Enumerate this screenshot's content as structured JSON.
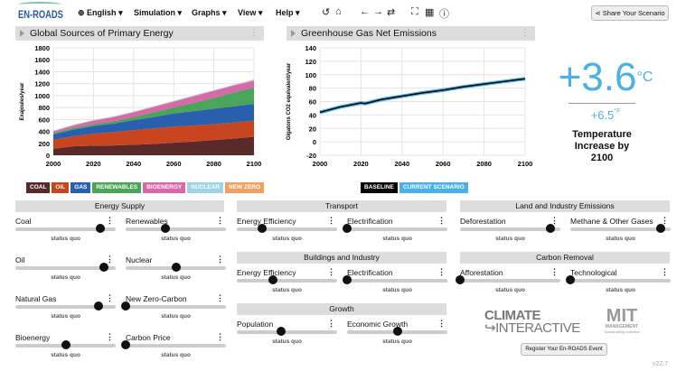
{
  "nav": {
    "logo": "EN-ROADS",
    "language": "English",
    "menus": [
      "Simulation",
      "Graphs",
      "View",
      "Help"
    ],
    "share": "Share Your Scenario"
  },
  "icons": [
    "undo-icon",
    "home-icon",
    "back-icon",
    "forward-icon",
    "redo-icon",
    "fullscreen-icon",
    "table-icon",
    "info-icon"
  ],
  "panels": {
    "left_title": "Global Sources of Primary Energy",
    "right_title": "Greenhouse Gas Net Emissions"
  },
  "chart_data": [
    {
      "type": "area",
      "stacked": true,
      "title": "Global Sources of Primary Energy",
      "ylabel": "Exajoules/year",
      "xlim": [
        2000,
        2100
      ],
      "ylim": [
        0,
        1800
      ],
      "yticks": [
        0,
        200,
        400,
        600,
        800,
        1000,
        1200,
        1400,
        1600,
        1800
      ],
      "xticks": [
        2000,
        2020,
        2040,
        2060,
        2080,
        2100
      ],
      "grid": true,
      "x": [
        2000,
        2010,
        2020,
        2030,
        2040,
        2050,
        2060,
        2070,
        2080,
        2090,
        2100
      ],
      "series": [
        {
          "name": "COAL",
          "color": "#5a2a2a",
          "values": [
            110,
            150,
            160,
            165,
            175,
            190,
            210,
            230,
            255,
            280,
            310
          ]
        },
        {
          "name": "OIL",
          "color": "#c8451f",
          "values": [
            150,
            170,
            200,
            225,
            245,
            260,
            270,
            270,
            265,
            270,
            270
          ]
        },
        {
          "name": "GAS",
          "color": "#2a5fae",
          "values": [
            90,
            110,
            130,
            140,
            170,
            190,
            220,
            240,
            260,
            270,
            280
          ]
        },
        {
          "name": "RENEWABLES",
          "color": "#4aa55a",
          "values": [
            20,
            30,
            30,
            40,
            50,
            80,
            100,
            140,
            180,
            230,
            280
          ]
        },
        {
          "name": "BIOENERGY",
          "color": "#d968a8",
          "values": [
            30,
            40,
            60,
            70,
            80,
            90,
            100,
            110,
            120,
            120,
            110
          ]
        },
        {
          "name": "NUCLEAR",
          "color": "#9fd4e4",
          "values": [
            10,
            10,
            10,
            10,
            10,
            10,
            10,
            10,
            10,
            10,
            15
          ]
        },
        {
          "name": "NEW ZERO",
          "color": "#f0a060",
          "values": [
            2,
            2,
            2,
            2,
            2,
            2,
            2,
            2,
            2,
            2,
            5
          ]
        }
      ]
    },
    {
      "type": "line",
      "title": "Greenhouse Gas Net Emissions",
      "ylabel": "Gigatons CO2 equivalent/year",
      "xlim": [
        2000,
        2100
      ],
      "ylim": [
        -20,
        140
      ],
      "yticks": [
        -20,
        0,
        20,
        40,
        60,
        80,
        100,
        120,
        140
      ],
      "xticks": [
        2000,
        2020,
        2040,
        2060,
        2080,
        2100
      ],
      "grid": true,
      "x": [
        2000,
        2010,
        2020,
        2022,
        2030,
        2040,
        2050,
        2060,
        2070,
        2080,
        2090,
        2100
      ],
      "series": [
        {
          "name": "BASELINE",
          "color": "#000000",
          "values": [
            44,
            52,
            58,
            57,
            63,
            68,
            73,
            77,
            82,
            86,
            90,
            94
          ]
        },
        {
          "name": "CURRENT SCENARIO",
          "color": "#4ab0e8",
          "values": [
            44,
            52,
            58,
            57,
            63,
            68,
            73,
            77,
            82,
            86,
            90,
            94
          ]
        }
      ]
    }
  ],
  "temperature": {
    "celsius": "+3.6",
    "c_unit": "°C",
    "fahrenheit": "+6.5",
    "f_unit": "°F",
    "caption": "Temperature Increase by 2100"
  },
  "groups": [
    {
      "title": "Energy Supply",
      "sliders": [
        {
          "label": "Coal",
          "value": 0.85,
          "status": "status quo"
        },
        {
          "label": "Renewables",
          "value": 0.4,
          "status": "status quo"
        },
        {
          "label": "Oil",
          "value": 0.88,
          "status": "status quo"
        },
        {
          "label": "Nuclear",
          "value": 0.5,
          "status": "status quo"
        },
        {
          "label": "Natural Gas",
          "value": 0.83,
          "status": "status quo"
        },
        {
          "label": "New Zero-Carbon",
          "value": 0,
          "status": "status quo"
        },
        {
          "label": "Bioenergy",
          "value": 0.5,
          "status": "status quo"
        },
        {
          "label": "Carbon Price",
          "value": 0,
          "status": "status quo"
        }
      ]
    },
    {
      "title": "Transport",
      "sliders": [
        {
          "label": "Energy Efficiency",
          "value": 0.25,
          "status": "status quo"
        },
        {
          "label": "Electrification",
          "value": 0,
          "status": "status quo"
        }
      ]
    },
    {
      "title": "Buildings and Industry",
      "sliders": [
        {
          "label": "Energy Efficiency",
          "value": 0.36,
          "status": "status quo"
        },
        {
          "label": "Electrification",
          "value": 0,
          "status": "status quo"
        }
      ]
    },
    {
      "title": "Growth",
      "sliders": [
        {
          "label": "Population",
          "value": 0.44,
          "status": "status quo"
        },
        {
          "label": "Economic Growth",
          "value": 0.5,
          "status": "status quo"
        }
      ]
    },
    {
      "title": "Land and Industry Emissions",
      "sliders": [
        {
          "label": "Deforestation",
          "value": 0.9,
          "status": "status quo"
        },
        {
          "label": "Methane & Other Gases",
          "value": 0.9,
          "status": "status quo"
        }
      ]
    },
    {
      "title": "Carbon Removal",
      "sliders": [
        {
          "label": "Afforestation",
          "value": 0,
          "status": "status quo"
        },
        {
          "label": "Technological",
          "value": 0,
          "status": "status quo"
        }
      ]
    }
  ],
  "footer": {
    "climate_interactive": "CLIMATE INTERACTIVE",
    "mit": "MIT MANAGEMENT Sustainability Initiative",
    "register": "Register Your En-ROADS Event",
    "version": "v22.7"
  }
}
